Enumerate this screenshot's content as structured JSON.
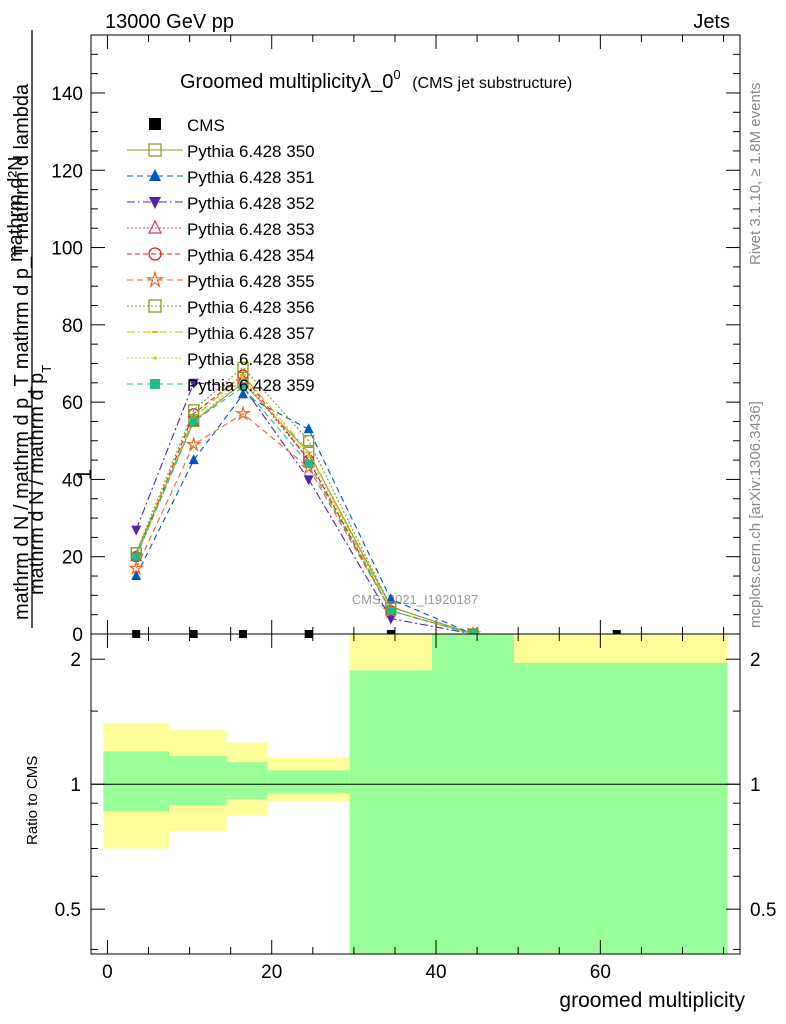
{
  "header": {
    "left": "13000 GeV pp",
    "right": "Jets"
  },
  "side_texts": {
    "rivet": "Rivet 3.1.10, ≥ 1.8M events",
    "mcplots": "mcplots.cern.ch [arXiv:1306.3436]"
  },
  "watermark": "CMS_2021_I1920187",
  "chart_data": [
    {
      "type": "line",
      "title": "Groomed multiplicityλ_0",
      "title_sup": "0",
      "subtitle": "(CMS jet substructure)",
      "ylabel_numerator_pieces": [
        "1",
        "mathrm d N / mathrm d p",
        "T",
        "mathrm d p",
        "T",
        "mathrm d lambda"
      ],
      "ylabel_numerator": "mathrm d²N",
      "ylabel_denominator": "mathrm d N / mathrm d p_T mathrm d p_T mathrm d lambda",
      "ylabel_lead": "1",
      "ylabel_main": "mathrm d N / mathrm d p",
      "ylabel_sub": "T",
      "ylim": [
        0,
        155
      ],
      "xlim": [
        -2,
        77
      ],
      "yticks": [
        "0",
        "20",
        "40",
        "60",
        "80",
        "100",
        "120",
        "140"
      ],
      "y_tick_values": [
        0,
        20,
        40,
        60,
        80,
        100,
        120,
        140
      ],
      "x_tick_values": [
        0,
        20,
        40,
        60
      ],
      "legend_position": "top-left",
      "legend_cms": "CMS",
      "x": [
        3.5,
        10.5,
        16.5,
        24.5,
        34.5,
        44.5
      ],
      "cms_x": [
        3.5,
        10.5,
        16.5,
        24.5,
        34.5,
        62
      ],
      "cms_y": [
        0,
        0,
        0,
        0,
        0,
        0
      ],
      "series": [
        {
          "name": "Pythia 6.428 350",
          "color": "#999933",
          "marker": "square-open",
          "dash": "",
          "values": [
            21,
            55,
            65,
            47,
            7,
            0
          ]
        },
        {
          "name": "Pythia 6.428 351",
          "color": "#0055cc",
          "marker": "triangle-up",
          "dash": "6,4",
          "values": [
            15,
            45,
            62,
            53,
            9,
            0
          ]
        },
        {
          "name": "Pythia 6.428 352",
          "color": "#5522aa",
          "marker": "triangle-down",
          "dash": "8,3,2,3",
          "values": [
            27,
            65,
            64,
            40,
            4,
            0
          ]
        },
        {
          "name": "Pythia 6.428 353",
          "color": "#cc3377",
          "marker": "triangle-open",
          "dash": "2,2",
          "values": [
            20,
            55,
            66,
            45,
            6,
            0
          ]
        },
        {
          "name": "Pythia 6.428 354",
          "color": "#dd2222",
          "marker": "circle-open",
          "dash": "5,3",
          "values": [
            20,
            57,
            67,
            45,
            6,
            0
          ]
        },
        {
          "name": "Pythia 6.428 355",
          "color": "#ee6622",
          "marker": "star-open",
          "dash": "6,4",
          "values": [
            17,
            49,
            57,
            43,
            6,
            0
          ]
        },
        {
          "name": "Pythia 6.428 356",
          "color": "#889922",
          "marker": "square-open",
          "dash": "2,2",
          "values": [
            21,
            58,
            69,
            50,
            7,
            0
          ]
        },
        {
          "name": "Pythia 6.428 357",
          "color": "#ccbb11",
          "marker": "dash",
          "dash": "8,3,2,3",
          "values": [
            20,
            56,
            67,
            47,
            6,
            0
          ]
        },
        {
          "name": "Pythia 6.428 358",
          "color": "#bbdd22",
          "marker": "dot",
          "dash": "2,2",
          "values": [
            20,
            55,
            66,
            46,
            6,
            0
          ]
        },
        {
          "name": "Pythia 6.428 359",
          "color": "#22bb88",
          "marker": "square",
          "dash": "6,4",
          "values": [
            20,
            55,
            64,
            44,
            6,
            0
          ]
        }
      ]
    },
    {
      "type": "area",
      "ylabel": "Ratio to CMS",
      "xlabel": "groomed multiplicity",
      "scale": "log",
      "ylim": [
        0.39,
        2.3
      ],
      "xlim": [
        -2,
        77
      ],
      "yticks": [
        "0.5",
        "1",
        "2"
      ],
      "y_tick_values": [
        0.5,
        1,
        2
      ],
      "xticks": [
        "0",
        "20",
        "40",
        "60"
      ],
      "x_tick_values": [
        0,
        20,
        40,
        60
      ],
      "reference_line": 1,
      "bins": [
        {
          "x0": -0.5,
          "x1": 7.5,
          "yellow": [
            0.7,
            1.4
          ],
          "green": [
            0.86,
            1.2
          ]
        },
        {
          "x0": 7.5,
          "x1": 14.5,
          "yellow": [
            0.77,
            1.35
          ],
          "green": [
            0.89,
            1.17
          ]
        },
        {
          "x0": 14.5,
          "x1": 19.5,
          "yellow": [
            0.84,
            1.26
          ],
          "green": [
            0.92,
            1.13
          ]
        },
        {
          "x0": 19.5,
          "x1": 29.5,
          "yellow": [
            0.91,
            1.16
          ],
          "green": [
            0.95,
            1.08
          ]
        },
        {
          "x0": 29.5,
          "x1": 39.5,
          "yellow": [
            0.39,
            2.3
          ],
          "green": [
            0.39,
            1.88
          ]
        },
        {
          "x0": 39.5,
          "x1": 49.5,
          "yellow": [
            0.39,
            2.3
          ],
          "green": [
            0.39,
            2.3
          ]
        },
        {
          "x0": 49.5,
          "x1": 75.5,
          "yellow": [
            0.39,
            2.3
          ],
          "green": [
            0.39,
            1.96
          ]
        }
      ],
      "colors": {
        "yellow": "#ffff99",
        "green": "#99ff99"
      }
    }
  ]
}
